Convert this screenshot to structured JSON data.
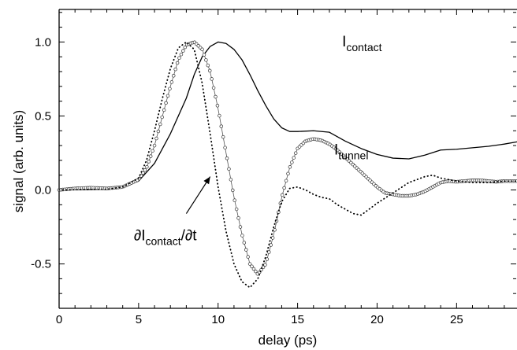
{
  "chart_data": {
    "type": "line",
    "title": "",
    "xlabel": "delay (ps)",
    "ylabel": "signal (arb. units)",
    "xlim": [
      0,
      28.8
    ],
    "ylim": [
      -0.8,
      1.22
    ],
    "xticks": [
      0,
      5,
      10,
      15,
      20,
      25
    ],
    "yticks": [
      1.0,
      0.5,
      0.0,
      -0.5
    ],
    "xtick_labels": [
      "0",
      "5",
      "10",
      "15",
      "20",
      "25"
    ],
    "ytick_labels": [
      "1.0",
      "0.5",
      "0.0",
      "-0.5"
    ],
    "grid": false,
    "legend": "none",
    "annotations": [
      {
        "id": "contact",
        "main": "I",
        "sub": "contact",
        "tail": ""
      },
      {
        "id": "tunnel",
        "main": "I",
        "sub": "tunnel",
        "tail": ""
      },
      {
        "id": "deriv",
        "main": "∂I",
        "sub": "contact",
        "tail": "/∂t"
      }
    ],
    "series": [
      {
        "id": "contact",
        "style": "solid",
        "x": [
          0,
          3,
          4,
          5,
          6,
          7,
          8,
          8.5,
          9,
          9.5,
          10,
          10.5,
          11,
          11.5,
          12,
          12.5,
          13,
          13.5,
          14,
          14.5,
          15,
          16,
          17,
          18,
          19,
          20,
          21,
          22,
          23,
          24,
          25,
          26,
          27,
          28,
          28.8
        ],
        "y": [
          0,
          0.005,
          0.02,
          0.06,
          0.18,
          0.38,
          0.62,
          0.78,
          0.9,
          0.97,
          1.0,
          0.99,
          0.95,
          0.88,
          0.78,
          0.67,
          0.57,
          0.48,
          0.42,
          0.395,
          0.395,
          0.4,
          0.39,
          0.33,
          0.28,
          0.24,
          0.215,
          0.21,
          0.235,
          0.27,
          0.275,
          0.285,
          0.295,
          0.31,
          0.325
        ]
      },
      {
        "id": "tunnel",
        "style": "circles",
        "x": [
          0,
          1,
          2,
          3,
          4,
          5,
          5.5,
          6,
          6.5,
          7,
          7.5,
          8,
          8.5,
          9,
          9.5,
          10,
          10.5,
          11,
          11.5,
          12,
          12.5,
          13,
          13.5,
          14,
          14.5,
          15,
          15.5,
          16,
          16.5,
          17,
          17.5,
          18,
          18.5,
          19,
          19.5,
          20,
          20.5,
          21,
          21.5,
          22,
          22.5,
          23,
          23.5,
          24,
          24.5,
          25,
          25.5,
          26,
          26.5,
          27,
          27.5,
          28,
          28.8
        ],
        "y": [
          0,
          0.01,
          0.015,
          0.01,
          0.02,
          0.07,
          0.15,
          0.3,
          0.5,
          0.7,
          0.88,
          0.98,
          1.0,
          0.95,
          0.8,
          0.55,
          0.25,
          -0.05,
          -0.3,
          -0.5,
          -0.57,
          -0.5,
          -0.3,
          -0.05,
          0.15,
          0.28,
          0.33,
          0.345,
          0.335,
          0.31,
          0.27,
          0.22,
          0.17,
          0.12,
          0.07,
          0.02,
          -0.02,
          -0.03,
          -0.04,
          -0.04,
          -0.03,
          -0.01,
          0.02,
          0.05,
          0.06,
          0.055,
          0.06,
          0.065,
          0.065,
          0.06,
          0.055,
          0.06,
          0.06
        ]
      },
      {
        "id": "deriv",
        "style": "dotted",
        "x": [
          0,
          3,
          4,
          5,
          5.5,
          6,
          6.5,
          7,
          7.5,
          8,
          8.5,
          9,
          9.5,
          10,
          10.5,
          11,
          11.5,
          12,
          12.5,
          13,
          13.5,
          14,
          14.5,
          15,
          15.5,
          16,
          16.5,
          17,
          17.5,
          18,
          18.5,
          19,
          19.5,
          20,
          21,
          22,
          23,
          23.5,
          24,
          25,
          26,
          27,
          28,
          28.8
        ],
        "y": [
          0,
          0.005,
          0.02,
          0.08,
          0.2,
          0.4,
          0.62,
          0.82,
          0.96,
          1.0,
          0.95,
          0.72,
          0.38,
          0.02,
          -0.28,
          -0.5,
          -0.62,
          -0.66,
          -0.6,
          -0.45,
          -0.25,
          -0.08,
          0.01,
          0.02,
          0.0,
          -0.03,
          -0.05,
          -0.06,
          -0.1,
          -0.13,
          -0.16,
          -0.17,
          -0.13,
          -0.09,
          -0.02,
          0.05,
          0.09,
          0.1,
          0.08,
          0.06,
          0.05,
          0.05,
          0.06,
          0.06
        ]
      }
    ]
  }
}
